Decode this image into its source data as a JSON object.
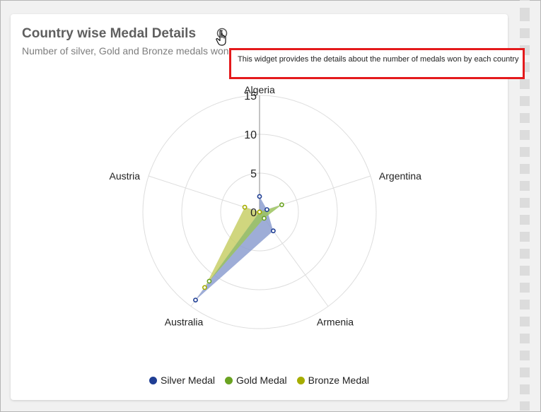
{
  "widget": {
    "title": "Country wise Medal Details",
    "subtitle": "Number of silver, Gold and Bronze medals won by each country",
    "info_icon": "info-circle-icon",
    "tooltip": "This widget provides the details about the number of medals won by each country"
  },
  "chart_data": {
    "type": "radar",
    "title": "Country wise Medal Details",
    "subtitle": "Number of silver, Gold and Bronze medals won by each country",
    "categories": [
      "Algeria",
      "Argentina",
      "Armenia",
      "Australia",
      "Austria"
    ],
    "radial_ticks": [
      0,
      5,
      10,
      15
    ],
    "rlim": [
      0,
      15
    ],
    "grid": true,
    "legend_position": "bottom",
    "series": [
      {
        "name": "Silver Medal",
        "color": "#1f3e94",
        "fill": "#8d9fd0",
        "values": [
          2,
          1,
          3,
          14,
          0
        ]
      },
      {
        "name": "Gold Medal",
        "color": "#6aa321",
        "fill": "#9bc35e",
        "values": [
          0,
          3,
          1,
          11,
          0
        ]
      },
      {
        "name": "Bronze Medal",
        "color": "#a6ad00",
        "fill": "#c8cf67",
        "values": [
          0,
          0,
          0,
          12,
          2
        ]
      }
    ]
  }
}
